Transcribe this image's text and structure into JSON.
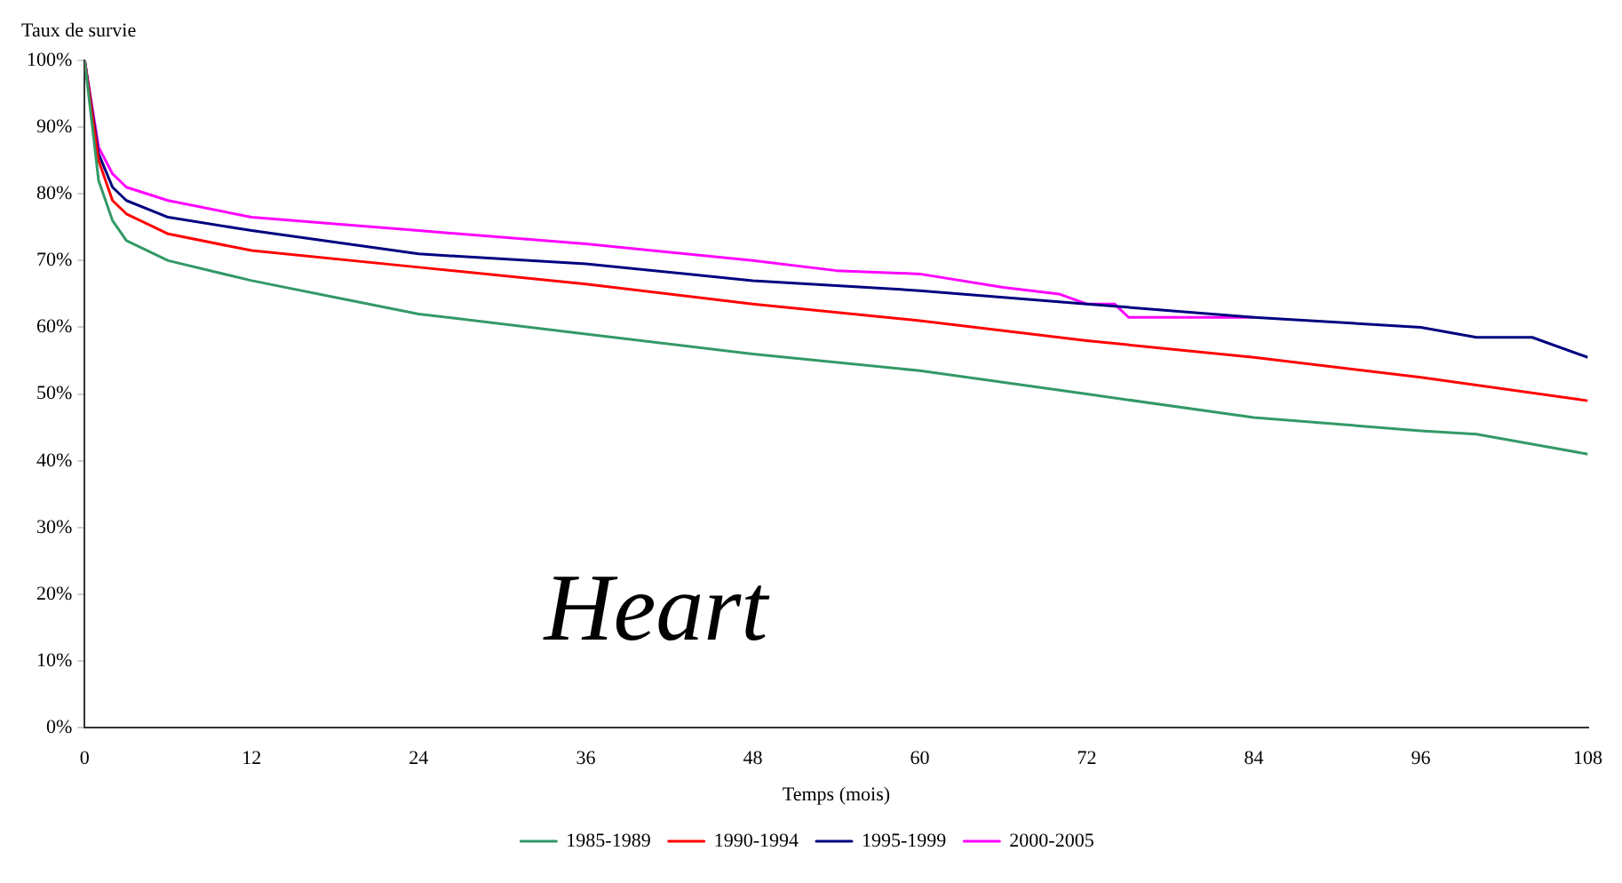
{
  "chart_data": {
    "type": "line",
    "ylabel": "Taux de survie",
    "xlabel": "Temps (mois)",
    "annotations": [
      "Heart"
    ],
    "xlim": [
      0,
      108
    ],
    "xticks": [
      0,
      12,
      24,
      36,
      48,
      60,
      72,
      84,
      96,
      108
    ],
    "ylim": [
      0,
      100
    ],
    "yticks": [
      {
        "value": 0,
        "label": "0%"
      },
      {
        "value": 10,
        "label": "10%"
      },
      {
        "value": 20,
        "label": "20%"
      },
      {
        "value": 30,
        "label": "30%"
      },
      {
        "value": 40,
        "label": "40%"
      },
      {
        "value": 50,
        "label": "50%"
      },
      {
        "value": 60,
        "label": "60%"
      },
      {
        "value": 70,
        "label": "70%"
      },
      {
        "value": 80,
        "label": "80%"
      },
      {
        "value": 90,
        "label": "90%"
      },
      {
        "value": 100,
        "label": "100%"
      }
    ],
    "grid": false,
    "legend": "bottom",
    "marker": "none",
    "line_style": "solid",
    "series": [
      {
        "name": "1985-1989",
        "color": "#339966",
        "x": [
          0,
          1,
          2,
          3,
          6,
          12,
          18,
          24,
          36,
          48,
          60,
          72,
          84,
          96,
          100,
          108
        ],
        "values": [
          100,
          82,
          76,
          73,
          70,
          67,
          64.5,
          62,
          59,
          56,
          53.5,
          50,
          46.5,
          44.5,
          44,
          41
        ]
      },
      {
        "name": "1990-1994",
        "color": "#ff0000",
        "x": [
          0,
          1,
          2,
          3,
          6,
          12,
          24,
          36,
          48,
          60,
          72,
          84,
          96,
          108
        ],
        "values": [
          100,
          85,
          79,
          77,
          74,
          71.5,
          69,
          66.5,
          63.5,
          61,
          58,
          55.5,
          52.5,
          49
        ]
      },
      {
        "name": "1995-1999",
        "color": "#000080",
        "x": [
          0,
          1,
          2,
          3,
          6,
          12,
          24,
          36,
          48,
          60,
          72,
          84,
          96,
          100,
          104,
          108
        ],
        "values": [
          100,
          86,
          81,
          79,
          76.5,
          74.5,
          71,
          69.5,
          67,
          65.5,
          63.5,
          61.5,
          60,
          58.5,
          58.5,
          55.5
        ]
      },
      {
        "name": "2000-2005",
        "color": "#ff00ff",
        "x": [
          0,
          1,
          2,
          3,
          6,
          12,
          24,
          36,
          48,
          54,
          60,
          66,
          70,
          72,
          74,
          75,
          84
        ],
        "values": [
          100,
          87,
          83,
          81,
          79,
          76.5,
          74.5,
          72.5,
          70,
          68.5,
          68,
          66,
          65,
          63.5,
          63.5,
          61.5,
          61.5
        ]
      }
    ]
  }
}
